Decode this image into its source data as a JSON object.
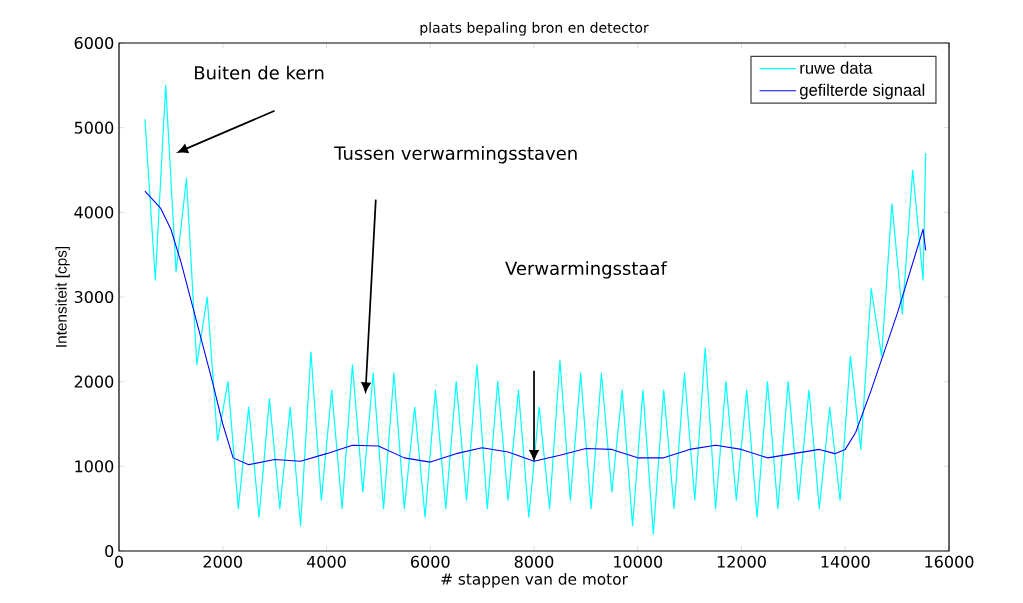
{
  "chart_data": {
    "type": "line",
    "title": "plaats bepaling bron en detector",
    "xlabel": "# stappen van de motor",
    "ylabel": "Intensiteit [cps]",
    "xlim": [
      0,
      16000
    ],
    "ylim": [
      0,
      6000
    ],
    "xticks": [
      0,
      2000,
      4000,
      6000,
      8000,
      10000,
      12000,
      14000,
      16000
    ],
    "yticks": [
      0,
      1000,
      2000,
      3000,
      4000,
      5000,
      6000
    ],
    "grid": false,
    "legend": "top right",
    "annotations": [
      "Buiten de kern",
      "Tussen verwarmingsstaven",
      "Verwarmingsstaaf"
    ],
    "series": [
      {
        "name": "ruwe data",
        "color": "#00ffff",
        "x": [
          500,
          700,
          900,
          1100,
          1300,
          1500,
          1700,
          1900,
          2100,
          2300,
          2500,
          2700,
          2900,
          3100,
          3300,
          3500,
          3700,
          3900,
          4100,
          4300,
          4500,
          4700,
          4900,
          5100,
          5300,
          5500,
          5700,
          5900,
          6100,
          6300,
          6500,
          6700,
          6900,
          7100,
          7300,
          7500,
          7700,
          7900,
          8100,
          8300,
          8500,
          8700,
          8900,
          9100,
          9300,
          9500,
          9700,
          9900,
          10100,
          10300,
          10500,
          10700,
          10900,
          11100,
          11300,
          11500,
          11700,
          11900,
          12100,
          12300,
          12500,
          12700,
          12900,
          13100,
          13300,
          13500,
          13700,
          13900,
          14100,
          14300,
          14500,
          14700,
          14900,
          15100,
          15300,
          15500,
          15550
        ],
        "values": [
          5100,
          3200,
          5500,
          3300,
          4400,
          2200,
          3000,
          1300,
          2000,
          500,
          1700,
          400,
          1800,
          500,
          1700,
          300,
          2350,
          600,
          1900,
          500,
          2200,
          700,
          2100,
          500,
          2100,
          500,
          1700,
          400,
          1900,
          500,
          2000,
          600,
          2200,
          500,
          2000,
          600,
          1900,
          400,
          1700,
          500,
          2250,
          600,
          2100,
          500,
          2100,
          700,
          1900,
          300,
          1900,
          200,
          1900,
          500,
          2100,
          600,
          2400,
          500,
          2000,
          600,
          1900,
          400,
          2000,
          500,
          2000,
          600,
          1900,
          500,
          1700,
          600,
          2300,
          1200,
          3100,
          2300,
          4100,
          2800,
          4500,
          3200,
          4700
        ]
      },
      {
        "name": "gefilterde signaal",
        "color": "#0000ff",
        "x": [
          500,
          800,
          1000,
          1200,
          1500,
          1800,
          2000,
          2200,
          2500,
          3000,
          3500,
          4000,
          4500,
          5000,
          5500,
          6000,
          6500,
          7000,
          7500,
          8000,
          8500,
          9000,
          9500,
          10000,
          10500,
          11000,
          11500,
          12000,
          12500,
          13000,
          13500,
          13800,
          14000,
          14200,
          14500,
          15000,
          15500,
          15550
        ],
        "values": [
          4250,
          4050,
          3800,
          3400,
          2700,
          2000,
          1500,
          1100,
          1020,
          1080,
          1060,
          1150,
          1250,
          1240,
          1100,
          1050,
          1150,
          1220,
          1170,
          1060,
          1130,
          1210,
          1200,
          1100,
          1100,
          1200,
          1250,
          1200,
          1100,
          1150,
          1200,
          1150,
          1200,
          1400,
          1900,
          2800,
          3800,
          3550
        ]
      }
    ]
  }
}
